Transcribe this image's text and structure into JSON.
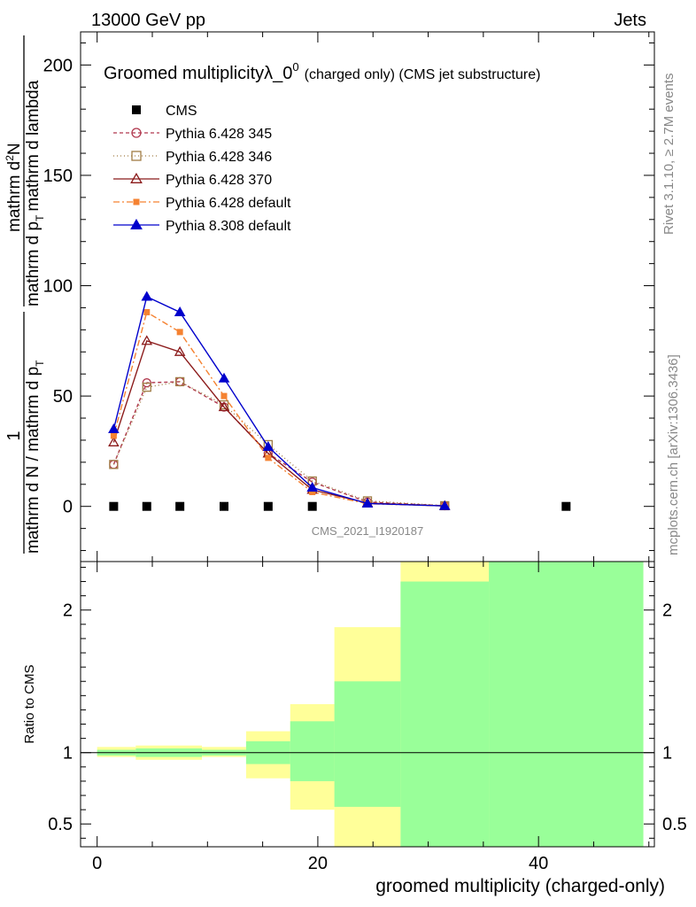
{
  "header": {
    "left": "13000 GeV pp",
    "right": "Jets"
  },
  "side_labels": {
    "rivet": "Rivet 3.1.10, ≥ 2.7M events",
    "mcplots": "mcplots.cern.ch [arXiv:1306.3436]"
  },
  "chart_data": [
    {
      "type": "line",
      "title_main": "Groomed multiplicityλ_0",
      "title_sup": "0",
      "title_tail": "(charged only) (CMS jet substructure)",
      "ylabel_numer_1": "1",
      "ylabel_denom": "mathrm d N / mathrm d p",
      "ylabel_denom_sub": "T",
      "ylabel_numer_2": "mathrm d",
      "ylabel_numer_sup": "2",
      "ylabel_numer_2_tail": "N",
      "ylabel_denom_2": "mathrm d p",
      "ylabel_denom_2_sub": "T",
      "ylabel_denom_2_tail": "mathrm d lambda",
      "analysis_label": "CMS_2021_I1920187",
      "xlim": [
        -1.5,
        50.5
      ],
      "ylim": [
        -25,
        215
      ],
      "yticks": [
        0,
        50,
        100,
        150,
        200
      ],
      "ytick_labels": [
        "0",
        "50",
        "100",
        "150",
        "200"
      ],
      "series": [
        {
          "name": "CMS",
          "color": "#000000",
          "marker": "square-filled",
          "dash": "none",
          "x": [
            1.5,
            4.5,
            7.5,
            11.5,
            15.5,
            19.5,
            42.5
          ],
          "y": [
            0,
            0,
            0,
            0,
            0,
            0,
            0
          ]
        },
        {
          "name": "Pythia 6.428 345",
          "color": "#b0374d",
          "marker": "circle-open",
          "dash": "4,3",
          "x": [
            1.5,
            4.5,
            7.5,
            11.5,
            15.5,
            19.5,
            24.5,
            31.5
          ],
          "y": [
            19,
            56,
            56.5,
            45,
            24,
            11,
            2,
            0.3
          ]
        },
        {
          "name": "Pythia 6.428 346",
          "color": "#a07c44",
          "marker": "square-open",
          "dash": "1,3",
          "x": [
            1.5,
            4.5,
            7.5,
            11.5,
            15.5,
            19.5,
            24.5,
            31.5
          ],
          "y": [
            19,
            54,
            56.5,
            46,
            28,
            11.5,
            2.5,
            0.3
          ]
        },
        {
          "name": "Pythia 6.428 370",
          "color": "#8b1a1a",
          "marker": "triangle-open",
          "dash": "none",
          "x": [
            1.5,
            4.5,
            7.5,
            11.5,
            15.5,
            19.5,
            24.5,
            31.5
          ],
          "y": [
            29,
            75,
            70,
            45,
            24,
            7.5,
            1.5,
            0.2
          ]
        },
        {
          "name": "Pythia 6.428 default",
          "color": "#f58231",
          "marker": "square-filled",
          "dash": "7,3,2,3",
          "x": [
            1.5,
            4.5,
            7.5,
            11.5,
            15.5,
            19.5,
            24.5,
            31.5
          ],
          "y": [
            32,
            88,
            79,
            50,
            22,
            6.5,
            1.2,
            0.2
          ]
        },
        {
          "name": "Pythia 8.308 default",
          "color": "#0000cc",
          "marker": "triangle-filled",
          "dash": "none",
          "x": [
            1.5,
            4.5,
            7.5,
            11.5,
            15.5,
            19.5,
            24.5,
            31.5
          ],
          "y": [
            35,
            95,
            88,
            58,
            27,
            8.5,
            1.3,
            0.2
          ]
        }
      ]
    },
    {
      "type": "area",
      "ylabel": "Ratio to CMS",
      "xlabel": "groomed multiplicity (charged-only)",
      "xlim": [
        -1.5,
        50.5
      ],
      "ylim": [
        0.34,
        2.34
      ],
      "xticks": [
        0,
        20,
        40
      ],
      "xtick_labels": [
        "0",
        "20",
        "40"
      ],
      "yticks": [
        0.5,
        1,
        2
      ],
      "ytick_labels": [
        "0.5",
        "1",
        "2"
      ],
      "reference_line": 1,
      "bands": [
        {
          "name": "stat",
          "color": "#99ff99",
          "bins": [
            [
              0,
              3.5,
              0.98,
              1.02
            ],
            [
              3.5,
              9.5,
              0.97,
              1.03
            ],
            [
              9.5,
              13.5,
              0.98,
              1.02
            ],
            [
              13.5,
              17.5,
              0.92,
              1.08
            ],
            [
              17.5,
              21.5,
              0.8,
              1.22
            ],
            [
              21.5,
              27.5,
              0.62,
              1.5
            ],
            [
              27.5,
              35.5,
              0.34,
              2.2
            ],
            [
              35.5,
              49.5,
              0.34,
              2.34
            ]
          ]
        },
        {
          "name": "total",
          "color": "#ffff99",
          "bins": [
            [
              0,
              3.5,
              0.97,
              1.04
            ],
            [
              3.5,
              9.5,
              0.95,
              1.05
            ],
            [
              9.5,
              13.5,
              0.97,
              1.04
            ],
            [
              13.5,
              17.5,
              0.82,
              1.15
            ],
            [
              17.5,
              21.5,
              0.6,
              1.34
            ],
            [
              21.5,
              27.5,
              0.34,
              1.88
            ],
            [
              27.5,
              35.5,
              0.34,
              2.34
            ],
            [
              35.5,
              49.5,
              0.34,
              2.34
            ]
          ]
        }
      ]
    }
  ]
}
